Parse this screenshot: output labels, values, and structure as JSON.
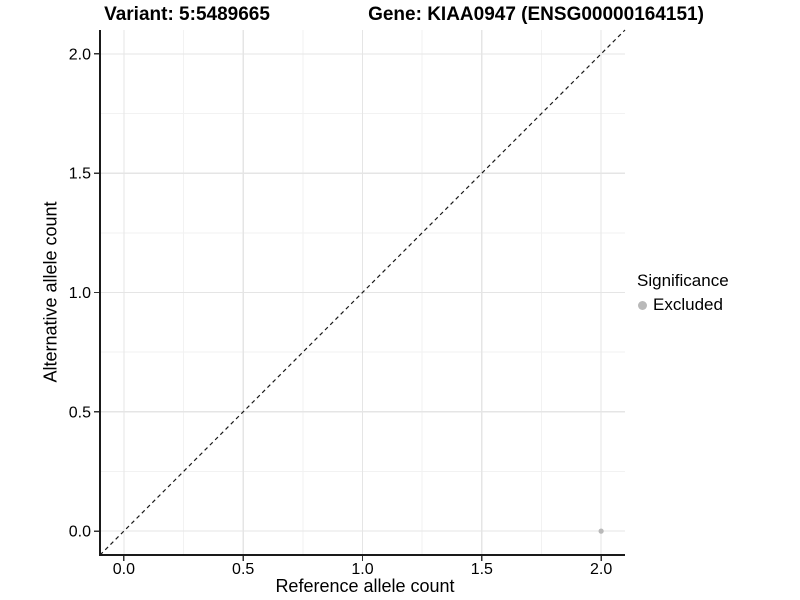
{
  "chart_data": {
    "type": "scatter",
    "title_left": "Variant: 5:5489665",
    "title_right": "Gene: KIAA0947 (ENSG00000164151)",
    "xlabel": "Reference allele count",
    "ylabel": "Alternative allele count",
    "xlim": [
      0,
      2
    ],
    "ylim": [
      0,
      2
    ],
    "x_ticks": [
      0.0,
      0.5,
      1.0,
      1.5,
      2.0
    ],
    "y_ticks": [
      0.0,
      0.5,
      1.0,
      1.5,
      2.0
    ],
    "x_tick_labels": [
      "0.0",
      "0.5",
      "1.0",
      "1.5",
      "2.0"
    ],
    "y_tick_labels": [
      "0.0",
      "0.5",
      "1.0",
      "1.5",
      "2.0"
    ],
    "x_minor_ticks": [
      0.25,
      0.75,
      1.25,
      1.75
    ],
    "y_minor_ticks": [
      0.25,
      0.75,
      1.25,
      1.75
    ],
    "grid": true,
    "legend_position": "right",
    "points": [
      {
        "x": 2.0,
        "y": 0.0,
        "series": "Excluded"
      }
    ],
    "reference_line": {
      "kind": "identity",
      "style": "dashed"
    },
    "legend": {
      "title": "Significance",
      "entries": [
        {
          "label": "Excluded",
          "marker": "circle",
          "color": "#b9b9b9"
        }
      ]
    },
    "colors": {
      "point_excluded": "#b9b9b9",
      "grid_major": "#e5e5e5",
      "grid_minor": "#f2f2f2",
      "axis_line": "#1a1a1a",
      "tick_mark": "#333333",
      "dashed_line": "#1a1a1a",
      "text": "#000000",
      "background": "#ffffff"
    }
  }
}
